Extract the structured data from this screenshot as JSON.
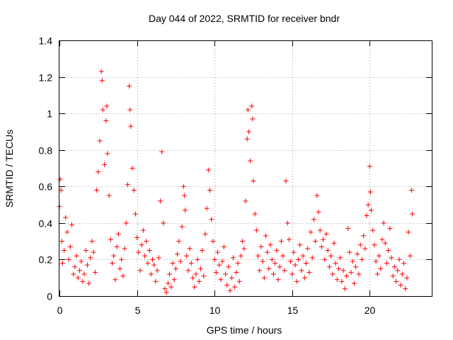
{
  "chart_data": {
    "type": "scatter",
    "title": "Day 044 of 2022, SRMTID for receiver bndr",
    "xlabel": "GPS time / hours",
    "ylabel": "SRMTID / TECUs",
    "xlim": [
      0,
      24
    ],
    "ylim": [
      0,
      1.4
    ],
    "xticks": [
      0,
      5,
      10,
      15,
      20
    ],
    "xtick_labels": [
      "0",
      "5",
      "10",
      "15",
      "20"
    ],
    "yticks": [
      0,
      0.2,
      0.4,
      0.6,
      0.8,
      1.0,
      1.2,
      1.4
    ],
    "ytick_labels": [
      "0",
      "0.2",
      "0.4",
      "0.6",
      "0.8",
      "1",
      "1.2",
      "1.4"
    ],
    "grid": true,
    "marker": "plus",
    "series": [
      {
        "name": "SRMTID",
        "color": "#ff0000",
        "points": [
          [
            0.0,
            0.49
          ],
          [
            0.05,
            0.64
          ],
          [
            0.1,
            0.58
          ],
          [
            0.15,
            0.3
          ],
          [
            0.2,
            0.18
          ],
          [
            0.3,
            0.25
          ],
          [
            0.4,
            0.43
          ],
          [
            0.5,
            0.35
          ],
          [
            0.6,
            0.2
          ],
          [
            0.7,
            0.27
          ],
          [
            0.8,
            0.39
          ],
          [
            0.9,
            0.12
          ],
          [
            1.0,
            0.16
          ],
          [
            1.1,
            0.22
          ],
          [
            1.2,
            0.1
          ],
          [
            1.3,
            0.14
          ],
          [
            1.4,
            0.19
          ],
          [
            1.5,
            0.08
          ],
          [
            1.6,
            0.12
          ],
          [
            1.7,
            0.25
          ],
          [
            1.8,
            0.17
          ],
          [
            1.9,
            0.07
          ],
          [
            2.0,
            0.21
          ],
          [
            2.1,
            0.3
          ],
          [
            2.2,
            0.24
          ],
          [
            2.3,
            0.13
          ],
          [
            2.4,
            0.58
          ],
          [
            2.5,
            0.68
          ],
          [
            2.6,
            0.85
          ],
          [
            2.7,
            1.23
          ],
          [
            2.75,
            1.18
          ],
          [
            2.8,
            1.02
          ],
          [
            2.9,
            0.72
          ],
          [
            3.0,
            0.96
          ],
          [
            3.05,
            1.04
          ],
          [
            3.1,
            0.78
          ],
          [
            3.2,
            0.55
          ],
          [
            3.3,
            0.31
          ],
          [
            3.4,
            0.18
          ],
          [
            3.5,
            0.22
          ],
          [
            3.6,
            0.09
          ],
          [
            3.7,
            0.27
          ],
          [
            3.8,
            0.34
          ],
          [
            3.9,
            0.15
          ],
          [
            4.0,
            0.2
          ],
          [
            4.1,
            0.11
          ],
          [
            4.2,
            0.26
          ],
          [
            4.3,
            0.4
          ],
          [
            4.4,
            0.61
          ],
          [
            4.5,
            1.15
          ],
          [
            4.55,
            1.02
          ],
          [
            4.6,
            0.93
          ],
          [
            4.7,
            0.7
          ],
          [
            4.8,
            0.58
          ],
          [
            4.9,
            0.45
          ],
          [
            5.0,
            0.32
          ],
          [
            5.1,
            0.24
          ],
          [
            5.2,
            0.14
          ],
          [
            5.3,
            0.28
          ],
          [
            5.4,
            0.36
          ],
          [
            5.5,
            0.22
          ],
          [
            5.6,
            0.3
          ],
          [
            5.7,
            0.18
          ],
          [
            5.8,
            0.25
          ],
          [
            5.9,
            0.12
          ],
          [
            6.0,
            0.2
          ],
          [
            6.1,
            0.17
          ],
          [
            6.2,
            0.08
          ],
          [
            6.3,
            0.14
          ],
          [
            6.4,
            0.21
          ],
          [
            6.5,
            0.52
          ],
          [
            6.6,
            0.79
          ],
          [
            6.7,
            0.4
          ],
          [
            6.8,
            0.04
          ],
          [
            6.9,
            0.02
          ],
          [
            7.0,
            0.07
          ],
          [
            7.1,
            0.12
          ],
          [
            7.2,
            0.05
          ],
          [
            7.3,
            0.18
          ],
          [
            7.4,
            0.09
          ],
          [
            7.5,
            0.15
          ],
          [
            7.6,
            0.23
          ],
          [
            7.7,
            0.3
          ],
          [
            7.8,
            0.19
          ],
          [
            7.9,
            0.38
          ],
          [
            8.0,
            0.6
          ],
          [
            8.05,
            0.55
          ],
          [
            8.1,
            0.47
          ],
          [
            8.2,
            0.22
          ],
          [
            8.3,
            0.14
          ],
          [
            8.4,
            0.26
          ],
          [
            8.5,
            0.18
          ],
          [
            8.6,
            0.1
          ],
          [
            8.7,
            0.05
          ],
          [
            8.8,
            0.12
          ],
          [
            8.9,
            0.2
          ],
          [
            9.0,
            0.08
          ],
          [
            9.1,
            0.15
          ],
          [
            9.2,
            0.25
          ],
          [
            9.3,
            0.11
          ],
          [
            9.4,
            0.34
          ],
          [
            9.5,
            0.48
          ],
          [
            9.6,
            0.69
          ],
          [
            9.7,
            0.58
          ],
          [
            9.8,
            0.42
          ],
          [
            9.9,
            0.3
          ],
          [
            10.0,
            0.2
          ],
          [
            10.1,
            0.13
          ],
          [
            10.2,
            0.24
          ],
          [
            10.3,
            0.17
          ],
          [
            10.4,
            0.09
          ],
          [
            10.5,
            0.19
          ],
          [
            10.6,
            0.27
          ],
          [
            10.7,
            0.12
          ],
          [
            10.8,
            0.06
          ],
          [
            10.9,
            0.16
          ],
          [
            11.0,
            0.03
          ],
          [
            11.1,
            0.1
          ],
          [
            11.2,
            0.21
          ],
          [
            11.3,
            0.05
          ],
          [
            11.4,
            0.13
          ],
          [
            11.5,
            0.18
          ],
          [
            11.6,
            0.08
          ],
          [
            11.7,
            0.22
          ],
          [
            11.8,
            0.3
          ],
          [
            11.9,
            0.26
          ],
          [
            12.0,
            0.52
          ],
          [
            12.1,
            0.86
          ],
          [
            12.15,
            1.02
          ],
          [
            12.2,
            0.9
          ],
          [
            12.3,
            0.74
          ],
          [
            12.4,
            1.04
          ],
          [
            12.45,
            0.97
          ],
          [
            12.5,
            0.63
          ],
          [
            12.6,
            0.45
          ],
          [
            12.7,
            0.36
          ],
          [
            12.8,
            0.22
          ],
          [
            12.9,
            0.14
          ],
          [
            13.0,
            0.27
          ],
          [
            13.1,
            0.19
          ],
          [
            13.2,
            0.1
          ],
          [
            13.3,
            0.33
          ],
          [
            13.4,
            0.24
          ],
          [
            13.5,
            0.15
          ],
          [
            13.6,
            0.28
          ],
          [
            13.7,
            0.2
          ],
          [
            13.8,
            0.12
          ],
          [
            13.9,
            0.18
          ],
          [
            14.0,
            0.25
          ],
          [
            14.1,
            0.09
          ],
          [
            14.2,
            0.16
          ],
          [
            14.3,
            0.3
          ],
          [
            14.4,
            0.22
          ],
          [
            14.5,
            0.14
          ],
          [
            14.6,
            0.63
          ],
          [
            14.7,
            0.4
          ],
          [
            14.8,
            0.31
          ],
          [
            14.9,
            0.19
          ],
          [
            15.0,
            0.12
          ],
          [
            15.1,
            0.24
          ],
          [
            15.2,
            0.17
          ],
          [
            15.3,
            0.08
          ],
          [
            15.4,
            0.2
          ],
          [
            15.5,
            0.28
          ],
          [
            15.6,
            0.14
          ],
          [
            15.7,
            0.22
          ],
          [
            15.8,
            0.1
          ],
          [
            15.9,
            0.18
          ],
          [
            16.0,
            0.26
          ],
          [
            16.1,
            0.13
          ],
          [
            16.2,
            0.35
          ],
          [
            16.3,
            0.21
          ],
          [
            16.4,
            0.42
          ],
          [
            16.5,
            0.3
          ],
          [
            16.6,
            0.55
          ],
          [
            16.7,
            0.46
          ],
          [
            16.8,
            0.36
          ],
          [
            16.9,
            0.27
          ],
          [
            17.0,
            0.31
          ],
          [
            17.1,
            0.2
          ],
          [
            17.2,
            0.34
          ],
          [
            17.3,
            0.25
          ],
          [
            17.4,
            0.16
          ],
          [
            17.5,
            0.22
          ],
          [
            17.6,
            0.12
          ],
          [
            17.7,
            0.29
          ],
          [
            17.8,
            0.18
          ],
          [
            17.9,
            0.09
          ],
          [
            18.0,
            0.15
          ],
          [
            18.1,
            0.21
          ],
          [
            18.2,
            0.08
          ],
          [
            18.3,
            0.14
          ],
          [
            18.4,
            0.04
          ],
          [
            18.5,
            0.11
          ],
          [
            18.6,
            0.37
          ],
          [
            18.7,
            0.24
          ],
          [
            18.8,
            0.13
          ],
          [
            18.9,
            0.19
          ],
          [
            19.0,
            0.07
          ],
          [
            19.1,
            0.16
          ],
          [
            19.2,
            0.23
          ],
          [
            19.3,
            0.12
          ],
          [
            19.4,
            0.28
          ],
          [
            19.5,
            0.2
          ],
          [
            19.6,
            0.33
          ],
          [
            19.7,
            0.26
          ],
          [
            19.8,
            0.44
          ],
          [
            19.9,
            0.5
          ],
          [
            20.0,
            0.71
          ],
          [
            20.05,
            0.57
          ],
          [
            20.1,
            0.47
          ],
          [
            20.2,
            0.36
          ],
          [
            20.3,
            0.28
          ],
          [
            20.4,
            0.19
          ],
          [
            20.5,
            0.12
          ],
          [
            20.6,
            0.22
          ],
          [
            20.7,
            0.15
          ],
          [
            20.8,
            0.31
          ],
          [
            20.9,
            0.4
          ],
          [
            21.0,
            0.29
          ],
          [
            21.1,
            0.18
          ],
          [
            21.2,
            0.25
          ],
          [
            21.3,
            0.37
          ],
          [
            21.4,
            0.21
          ],
          [
            21.5,
            0.11
          ],
          [
            21.6,
            0.16
          ],
          [
            21.7,
            0.08
          ],
          [
            21.8,
            0.14
          ],
          [
            21.9,
            0.2
          ],
          [
            22.0,
            0.06
          ],
          [
            22.1,
            0.12
          ],
          [
            22.2,
            0.18
          ],
          [
            22.3,
            0.04
          ],
          [
            22.4,
            0.1
          ],
          [
            22.5,
            0.35
          ],
          [
            22.6,
            0.22
          ],
          [
            22.7,
            0.58
          ],
          [
            22.75,
            0.45
          ]
        ]
      }
    ]
  }
}
